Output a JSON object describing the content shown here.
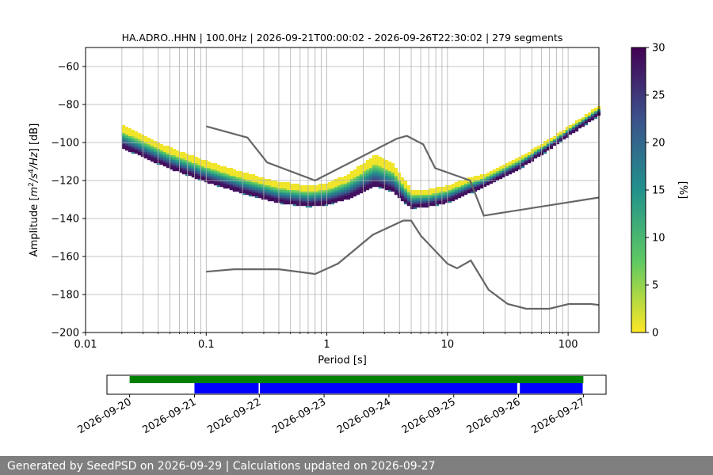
{
  "chart_data": [
    {
      "type": "heatmap",
      "title": "HA.ADRO..HHN | 100.0Hz | 2026-09-21T00:00:02 - 2026-09-26T22:30:02 | 279 segments",
      "xlabel": "Period [s]",
      "ylabel_parts": [
        "Amplitude [",
        "m",
        "2",
        "/s",
        "4",
        "/Hz",
        "] [dB]"
      ],
      "x_scale": "log",
      "xlim": [
        0.01,
        180
      ],
      "ylim": [
        -200,
        -50
      ],
      "grid": true,
      "x_major_ticks": [
        0.01,
        0.1,
        1,
        10,
        100
      ],
      "x_tick_labels": [
        "0.01",
        "0.1",
        "1",
        "10",
        "100"
      ],
      "y_ticks": [
        -200,
        -180,
        -160,
        -140,
        -120,
        -100,
        -80,
        -60
      ],
      "y_tick_labels": [
        "−200",
        "−180",
        "−160",
        "−140",
        "−120",
        "−100",
        "−80",
        "−60"
      ],
      "colorbar": {
        "label": "[%]",
        "range": [
          0,
          30
        ],
        "ticks": [
          0,
          5,
          10,
          15,
          20,
          25,
          30
        ],
        "tick_labels": [
          "0",
          "5",
          "10",
          "15",
          "20",
          "25",
          "30"
        ],
        "colormap": "viridis_r",
        "colors": [
          "#fde725",
          "#5ec962",
          "#21918c",
          "#3b528b",
          "#440154"
        ]
      },
      "nhnm": {
        "name": "NHNM",
        "color": "#666666",
        "period": [
          0.1,
          0.22,
          0.32,
          0.8,
          3.8,
          4.6,
          6.3,
          7.9,
          15.4,
          20,
          354.8
        ],
        "db": [
          -91.5,
          -97.4,
          -110.5,
          -120,
          -98,
          -96.5,
          -101,
          -113.5,
          -120,
          -138.5,
          -126
        ]
      },
      "nlnm": {
        "name": "NLNM",
        "color": "#666666",
        "period": [
          0.1,
          0.17,
          0.4,
          0.8,
          1.24,
          2.4,
          4.3,
          5,
          6,
          10,
          12,
          15.6,
          21.9,
          31.6,
          45,
          70,
          101,
          154,
          328
        ],
        "db": [
          -168,
          -166.7,
          -166.7,
          -169.2,
          -163.7,
          -148.6,
          -141.1,
          -141.1,
          -149,
          -163.8,
          -166.2,
          -162.1,
          -177.5,
          -185,
          -187.5,
          -187.5,
          -185,
          -185,
          -187.5
        ]
      },
      "psd_distribution": {
        "period_range": [
          0.02,
          180
        ],
        "description_points": {
          "period": [
            0.02,
            0.05,
            0.1,
            0.2,
            0.4,
            0.7,
            1.0,
            1.5,
            2.5,
            3.5,
            5,
            7,
            10,
            15,
            20,
            40,
            70,
            100,
            180
          ],
          "mode_db": [
            -100,
            -111,
            -118,
            -124,
            -129,
            -131,
            -130,
            -127,
            -120,
            -123,
            -132,
            -131,
            -129,
            -124,
            -121,
            -111,
            -101,
            -94,
            -83
          ],
          "spread_db": [
            9,
            8,
            8,
            8,
            8,
            8,
            8,
            10,
            13,
            12,
            7,
            6,
            6,
            5,
            4,
            3,
            2.5,
            2,
            2
          ]
        }
      }
    },
    {
      "type": "timeline",
      "x_tick_labels": [
        "2026-09-20",
        "2026-09-21",
        "2026-09-22",
        "2026-09-23",
        "2026-09-24",
        "2026-09-25",
        "2026-09-26",
        "2026-09-27"
      ],
      "xlim_days": [
        -0.35,
        7.35
      ],
      "data_availability": {
        "color": "#008000",
        "start_day": 0.0,
        "end_day": 7.0
      },
      "psd_coverage": {
        "color": "#0000ff",
        "segments": [
          [
            1.0,
            1.99
          ],
          [
            2.01,
            5.98
          ],
          [
            6.02,
            6.99
          ]
        ]
      }
    }
  ],
  "footer": {
    "text": "Generated by SeedPSD on 2026-09-29 | Calculations updated on 2026-09-27"
  }
}
